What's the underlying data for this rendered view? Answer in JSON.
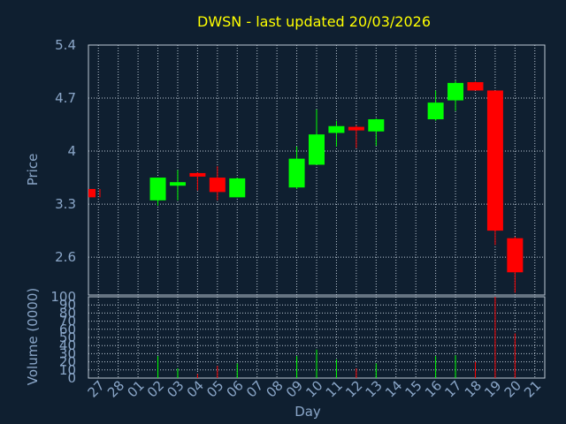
{
  "chart_data": {
    "type": "candlestick",
    "title": "DWSN - last updated 20/03/2026",
    "xlabel": "Day",
    "ylabel": "Price",
    "volume_label": "Volume (0000)",
    "grid": true,
    "price_ticks": [
      "5.4",
      "4.7",
      "4",
      "3.3",
      "2.6"
    ],
    "price_ylim": [
      2.1,
      5.4
    ],
    "volume_ticks": [
      "100",
      "90",
      "80",
      "70",
      "60",
      "50",
      "40",
      "30",
      "20",
      "10",
      "0"
    ],
    "volume_ylim": [
      0,
      100
    ],
    "x_tick_labels": [
      "27",
      "28",
      "01",
      "02",
      "03",
      "04",
      "05",
      "06",
      "07",
      "08",
      "09",
      "10",
      "11",
      "12",
      "13",
      "14",
      "15",
      "16",
      "17",
      "18",
      "19",
      "20",
      "21"
    ],
    "candles": [
      {
        "day": "27",
        "open": 3.5,
        "high": 3.5,
        "low": 3.39,
        "close": 3.39,
        "volume": 0
      },
      {
        "day": "02",
        "open": 3.35,
        "high": 3.65,
        "low": 3.28,
        "close": 3.65,
        "volume": 27
      },
      {
        "day": "03",
        "open": 3.55,
        "high": 3.75,
        "low": 3.35,
        "close": 3.59,
        "volume": 12
      },
      {
        "day": "04",
        "open": 3.71,
        "high": 3.72,
        "low": 3.48,
        "close": 3.67,
        "volume": 5
      },
      {
        "day": "05",
        "open": 3.65,
        "high": 3.8,
        "low": 3.35,
        "close": 3.46,
        "volume": 15
      },
      {
        "day": "06",
        "open": 3.39,
        "high": 3.65,
        "low": 3.39,
        "close": 3.64,
        "volume": 18
      },
      {
        "day": "09",
        "open": 3.52,
        "high": 4.06,
        "low": 3.5,
        "close": 3.9,
        "volume": 27
      },
      {
        "day": "10",
        "open": 3.82,
        "high": 4.55,
        "low": 3.82,
        "close": 4.22,
        "volume": 35
      },
      {
        "day": "11",
        "open": 4.24,
        "high": 4.4,
        "low": 4.06,
        "close": 4.33,
        "volume": 23
      },
      {
        "day": "12",
        "open": 4.32,
        "high": 4.34,
        "low": 4.04,
        "close": 4.29,
        "volume": 12
      },
      {
        "day": "13",
        "open": 4.26,
        "high": 4.43,
        "low": 4.07,
        "close": 4.42,
        "volume": 18
      },
      {
        "day": "16",
        "open": 4.42,
        "high": 4.8,
        "low": 4.4,
        "close": 4.64,
        "volume": 27
      },
      {
        "day": "17",
        "open": 4.67,
        "high": 4.93,
        "low": 4.53,
        "close": 4.9,
        "volume": 28
      },
      {
        "day": "18",
        "open": 4.91,
        "high": 4.92,
        "low": 4.8,
        "close": 4.8,
        "volume": 20
      },
      {
        "day": "19",
        "open": 4.8,
        "high": 4.8,
        "low": 2.76,
        "close": 2.95,
        "volume": 100
      },
      {
        "day": "20",
        "open": 2.85,
        "high": 2.87,
        "low": 2.13,
        "close": 2.4,
        "volume": 55
      }
    ],
    "colors": {
      "background": "#0f1f30",
      "up": "#00ff00",
      "down": "#ff0000",
      "grid": "#bdc9d5",
      "axis_text": "#8aa6c8",
      "title": "#ffff00"
    }
  }
}
